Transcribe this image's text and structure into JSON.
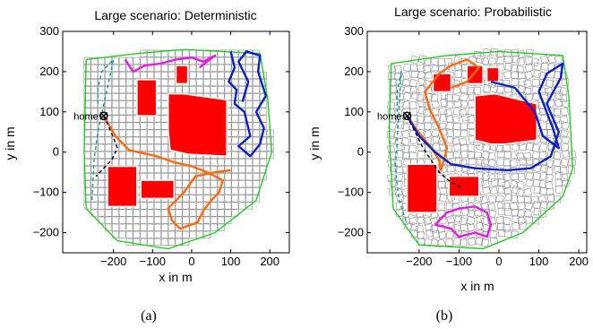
{
  "figure": {
    "caption_a": "(a)",
    "caption_b": "(b)"
  },
  "colors": {
    "obstacle": "#ff0000",
    "boundary": "#22cc22",
    "cell_outline": "#8f8f8f",
    "path_orange": "#ff6a10",
    "path_blue": "#0a1fc8",
    "path_magenta": "#e020e0",
    "path_teal": "#14a08c",
    "path_black": "#000000"
  },
  "chart_data": [
    {
      "type": "scatter",
      "panel": "a",
      "title": "Large scenario: Deterministic",
      "xlabel": "x in m",
      "ylabel": "y in m",
      "xlim": [
        -330,
        250
      ],
      "ylim": [
        -250,
        300
      ],
      "xticks": [
        -200,
        -100,
        0,
        100,
        200
      ],
      "yticks": [
        -200,
        -100,
        0,
        100,
        200,
        300
      ],
      "grid": false,
      "annotation": {
        "text": "home",
        "x": -225,
        "y": 90
      },
      "boundary": [
        [
          -270,
          230
        ],
        [
          -140,
          245
        ],
        [
          -20,
          255
        ],
        [
          175,
          245
        ],
        [
          195,
          130
        ],
        [
          205,
          0
        ],
        [
          165,
          -120
        ],
        [
          60,
          -200
        ],
        [
          -60,
          -240
        ],
        [
          -190,
          -220
        ],
        [
          -270,
          -140
        ],
        [
          -275,
          0
        ],
        [
          -270,
          230
        ]
      ],
      "obstacles": [
        [
          [
            -140,
            90
          ],
          [
            -140,
            180
          ],
          [
            -90,
            180
          ],
          [
            -90,
            90
          ]
        ],
        [
          [
            -40,
            170
          ],
          [
            -40,
            215
          ],
          [
            -10,
            215
          ],
          [
            -10,
            170
          ]
        ],
        [
          [
            -60,
            55
          ],
          [
            -60,
            145
          ],
          [
            -20,
            145
          ],
          [
            90,
            130
          ],
          [
            90,
            -10
          ],
          [
            -10,
            -5
          ],
          [
            -55,
            5
          ]
        ],
        [
          [
            -215,
            -35
          ],
          [
            -215,
            -135
          ],
          [
            -140,
            -135
          ],
          [
            -140,
            -35
          ]
        ],
        [
          [
            -130,
            -70
          ],
          [
            -130,
            -115
          ],
          [
            -45,
            -115
          ],
          [
            -45,
            -70
          ]
        ]
      ],
      "series": [
        {
          "color": "orange",
          "points": [
            [
              -225,
              90
            ],
            [
              -195,
              40
            ],
            [
              -160,
              5
            ],
            [
              -90,
              -10
            ],
            [
              -45,
              -25
            ],
            [
              0,
              -35
            ],
            [
              40,
              -50
            ],
            [
              80,
              -70
            ],
            [
              70,
              -100
            ],
            [
              50,
              -120
            ],
            [
              30,
              -145
            ],
            [
              15,
              -175
            ],
            [
              -30,
              -190
            ],
            [
              -50,
              -170
            ],
            [
              -60,
              -140
            ],
            [
              -40,
              -120
            ],
            [
              -20,
              -100
            ],
            [
              10,
              -60
            ],
            [
              60,
              -50
            ],
            [
              100,
              -45
            ]
          ]
        },
        {
          "color": "blue",
          "points": [
            [
              100,
              250
            ],
            [
              110,
              210
            ],
            [
              95,
              175
            ],
            [
              115,
              155
            ],
            [
              110,
              120
            ],
            [
              135,
              100
            ],
            [
              150,
              40
            ],
            [
              120,
              15
            ],
            [
              150,
              -10
            ],
            [
              175,
              20
            ],
            [
              185,
              60
            ],
            [
              165,
              100
            ],
            [
              190,
              140
            ],
            [
              170,
              200
            ],
            [
              175,
              240
            ],
            [
              140,
              250
            ],
            [
              120,
              225
            ],
            [
              145,
              175
            ],
            [
              130,
              125
            ]
          ]
        },
        {
          "color": "magenta",
          "points": [
            [
              -170,
              230
            ],
            [
              -150,
              200
            ],
            [
              -120,
              215
            ],
            [
              -80,
              220
            ],
            [
              -40,
              230
            ],
            [
              0,
              235
            ],
            [
              30,
              225
            ],
            [
              60,
              240
            ],
            [
              20,
              210
            ]
          ]
        },
        {
          "color": "black",
          "points": [
            [
              -225,
              90
            ],
            [
              -215,
              70
            ],
            [
              -200,
              35
            ],
            [
              -190,
              10
            ],
            [
              -205,
              -20
            ],
            [
              -225,
              -40
            ],
            [
              -245,
              -60
            ]
          ]
        },
        {
          "color": "teal",
          "points": [
            [
              -240,
              120
            ],
            [
              -240,
              160
            ],
            [
              -230,
              200
            ],
            [
              -200,
              230
            ],
            [
              -240,
              50
            ],
            [
              -250,
              -20
            ],
            [
              -255,
              -120
            ]
          ]
        }
      ]
    },
    {
      "type": "scatter",
      "panel": "b",
      "title": "Large scenario: Probabilistic",
      "xlabel": "x in m",
      "ylabel": "y in m",
      "xlim": [
        -330,
        220
      ],
      "ylim": [
        -250,
        300
      ],
      "xticks": [
        -200,
        -100,
        0,
        100,
        200
      ],
      "yticks": [
        -200,
        -100,
        0,
        100,
        200,
        300
      ],
      "grid": false,
      "annotation": {
        "text": "home",
        "x": -230,
        "y": 90
      },
      "boundary": [
        [
          -270,
          220
        ],
        [
          -130,
          240
        ],
        [
          0,
          250
        ],
        [
          160,
          240
        ],
        [
          175,
          140
        ],
        [
          185,
          -40
        ],
        [
          160,
          -110
        ],
        [
          60,
          -200
        ],
        [
          -40,
          -240
        ],
        [
          -200,
          -230
        ],
        [
          -265,
          -140
        ],
        [
          -275,
          50
        ],
        [
          -270,
          220
        ]
      ],
      "obstacles": [
        [
          [
            -165,
            150
          ],
          [
            -165,
            195
          ],
          [
            -120,
            195
          ],
          [
            -120,
            150
          ]
        ],
        [
          [
            -80,
            170
          ],
          [
            -80,
            215
          ],
          [
            -40,
            215
          ],
          [
            -40,
            170
          ]
        ],
        [
          [
            -30,
            175
          ],
          [
            -30,
            210
          ],
          [
            0,
            210
          ],
          [
            0,
            175
          ]
        ],
        [
          [
            -60,
            30
          ],
          [
            -60,
            140
          ],
          [
            -10,
            145
          ],
          [
            95,
            120
          ],
          [
            95,
            30
          ],
          [
            15,
            20
          ],
          [
            -20,
            20
          ]
        ],
        [
          [
            -230,
            -30
          ],
          [
            -230,
            -150
          ],
          [
            -155,
            -150
          ],
          [
            -155,
            -30
          ]
        ],
        [
          [
            -125,
            -60
          ],
          [
            -125,
            -110
          ],
          [
            -50,
            -110
          ],
          [
            -50,
            -60
          ]
        ]
      ],
      "series": [
        {
          "color": "orange",
          "points": [
            [
              -230,
              90
            ],
            [
              -210,
              60
            ],
            [
              -185,
              30
            ],
            [
              -165,
              5
            ],
            [
              -150,
              -20
            ],
            [
              -145,
              -45
            ],
            [
              -130,
              10
            ],
            [
              -150,
              60
            ],
            [
              -175,
              110
            ],
            [
              -185,
              150
            ],
            [
              -150,
              195
            ],
            [
              -120,
              215
            ],
            [
              -80,
              230
            ],
            [
              -50,
              210
            ],
            [
              -80,
              175
            ],
            [
              -120,
              160
            ]
          ]
        },
        {
          "color": "blue",
          "points": [
            [
              -230,
              90
            ],
            [
              -200,
              40
            ],
            [
              -160,
              0
            ],
            [
              -120,
              -30
            ],
            [
              -60,
              -40
            ],
            [
              20,
              -45
            ],
            [
              80,
              -40
            ],
            [
              130,
              -10
            ],
            [
              150,
              50
            ],
            [
              120,
              120
            ],
            [
              155,
              185
            ],
            [
              160,
              220
            ],
            [
              120,
              195
            ],
            [
              100,
              150
            ],
            [
              135,
              60
            ],
            [
              150,
              10
            ],
            [
              110,
              40
            ],
            [
              90,
              100
            ],
            [
              40,
              160
            ],
            [
              -20,
              175
            ]
          ]
        },
        {
          "color": "magenta",
          "points": [
            [
              -160,
              -180
            ],
            [
              -120,
              -190
            ],
            [
              -100,
              -210
            ],
            [
              -60,
              -200
            ],
            [
              -30,
              -210
            ],
            [
              -20,
              -180
            ],
            [
              -30,
              -150
            ],
            [
              -60,
              -135
            ],
            [
              -100,
              -140
            ],
            [
              -130,
              -150
            ],
            [
              -160,
              -180
            ]
          ]
        },
        {
          "color": "black",
          "points": [
            [
              -230,
              90
            ],
            [
              -210,
              50
            ],
            [
              -190,
              10
            ],
            [
              -170,
              -20
            ],
            [
              -150,
              -50
            ],
            [
              -120,
              -75
            ],
            [
              -90,
              -90
            ]
          ]
        },
        {
          "color": "teal",
          "points": [
            [
              -255,
              100
            ],
            [
              -255,
              150
            ],
            [
              -245,
              200
            ],
            [
              -255,
              30
            ],
            [
              -260,
              -40
            ],
            [
              -250,
              -120
            ],
            [
              -230,
              -180
            ]
          ]
        }
      ]
    }
  ]
}
